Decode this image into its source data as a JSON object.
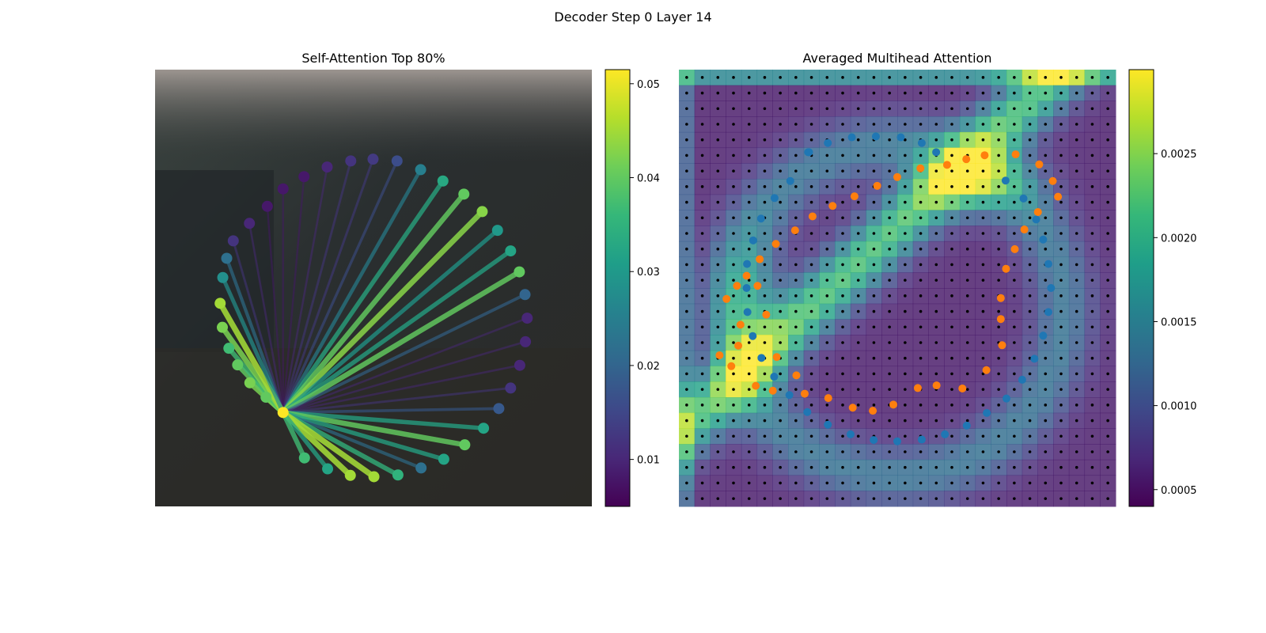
{
  "figure": {
    "suptitle": "Decoder Step 0 Layer 14"
  },
  "colors": {
    "viridis": [
      "#440154",
      "#482878",
      "#3e4989",
      "#31688e",
      "#26828e",
      "#1f9e89",
      "#35b779",
      "#6ece58",
      "#b5de2b",
      "#fde725"
    ],
    "series_blue": "#1f77b4",
    "series_orange": "#ff7f0e",
    "grid_dot": "#000000"
  },
  "chart_data": [
    {
      "type": "scatter",
      "panel": "left",
      "title": "Self-Attention Top 80%",
      "description_of_marks": "keypoints on image connected to a source point by lines colored by attention weight",
      "colorbar": {
        "min": 0.005,
        "max": 0.0515,
        "ticks": [
          0.01,
          0.02,
          0.03,
          0.04,
          0.05
        ],
        "tick_labels": [
          "0.01",
          "0.02",
          "0.03",
          "0.04",
          "0.05"
        ]
      },
      "source_point": {
        "x": 0.293,
        "y": 0.785,
        "weight": 0.0515
      },
      "points": [
        {
          "x": 0.164,
          "y": 0.432,
          "w": 0.022
        },
        {
          "x": 0.179,
          "y": 0.392,
          "w": 0.012
        },
        {
          "x": 0.216,
          "y": 0.352,
          "w": 0.01
        },
        {
          "x": 0.257,
          "y": 0.313,
          "w": 0.008
        },
        {
          "x": 0.293,
          "y": 0.273,
          "w": 0.008
        },
        {
          "x": 0.341,
          "y": 0.245,
          "w": 0.008
        },
        {
          "x": 0.394,
          "y": 0.223,
          "w": 0.01
        },
        {
          "x": 0.448,
          "y": 0.209,
          "w": 0.012
        },
        {
          "x": 0.499,
          "y": 0.205,
          "w": 0.013
        },
        {
          "x": 0.554,
          "y": 0.209,
          "w": 0.016
        },
        {
          "x": 0.608,
          "y": 0.229,
          "w": 0.025
        },
        {
          "x": 0.659,
          "y": 0.255,
          "w": 0.033
        },
        {
          "x": 0.707,
          "y": 0.285,
          "w": 0.04
        },
        {
          "x": 0.749,
          "y": 0.325,
          "w": 0.043
        },
        {
          "x": 0.784,
          "y": 0.368,
          "w": 0.03
        },
        {
          "x": 0.814,
          "y": 0.415,
          "w": 0.032
        },
        {
          "x": 0.834,
          "y": 0.463,
          "w": 0.04
        },
        {
          "x": 0.847,
          "y": 0.515,
          "w": 0.02
        },
        {
          "x": 0.852,
          "y": 0.569,
          "w": 0.01
        },
        {
          "x": 0.848,
          "y": 0.623,
          "w": 0.01
        },
        {
          "x": 0.835,
          "y": 0.677,
          "w": 0.01
        },
        {
          "x": 0.814,
          "y": 0.729,
          "w": 0.012
        },
        {
          "x": 0.787,
          "y": 0.776,
          "w": 0.018
        },
        {
          "x": 0.752,
          "y": 0.821,
          "w": 0.032
        },
        {
          "x": 0.709,
          "y": 0.859,
          "w": 0.04
        },
        {
          "x": 0.661,
          "y": 0.892,
          "w": 0.032
        },
        {
          "x": 0.609,
          "y": 0.912,
          "w": 0.022
        },
        {
          "x": 0.556,
          "y": 0.928,
          "w": 0.035
        },
        {
          "x": 0.501,
          "y": 0.932,
          "w": 0.045
        },
        {
          "x": 0.447,
          "y": 0.929,
          "w": 0.045
        },
        {
          "x": 0.395,
          "y": 0.914,
          "w": 0.032
        },
        {
          "x": 0.342,
          "y": 0.889,
          "w": 0.037
        },
        {
          "x": 0.254,
          "y": 0.75,
          "w": 0.04
        },
        {
          "x": 0.217,
          "y": 0.717,
          "w": 0.042
        },
        {
          "x": 0.189,
          "y": 0.676,
          "w": 0.04
        },
        {
          "x": 0.169,
          "y": 0.638,
          "w": 0.037
        },
        {
          "x": 0.154,
          "y": 0.59,
          "w": 0.042
        },
        {
          "x": 0.149,
          "y": 0.535,
          "w": 0.045
        },
        {
          "x": 0.155,
          "y": 0.476,
          "w": 0.028
        }
      ]
    },
    {
      "type": "heatmap",
      "panel": "right",
      "title": "Averaged Multihead Attention",
      "colorbar": {
        "min": 0.0004,
        "max": 0.003,
        "ticks": [
          0.0005,
          0.001,
          0.0015,
          0.002,
          0.0025
        ],
        "tick_labels": [
          "0.0005",
          "0.0010",
          "0.0015",
          "0.0020",
          "0.0025"
        ]
      },
      "grid_size": 28,
      "series": [
        {
          "color": "#1f77b4",
          "points": [
            {
              "x": 0.298,
              "y": 0.189
            },
            {
              "x": 0.341,
              "y": 0.168
            },
            {
              "x": 0.396,
              "y": 0.155
            },
            {
              "x": 0.451,
              "y": 0.153
            },
            {
              "x": 0.508,
              "y": 0.155
            },
            {
              "x": 0.556,
              "y": 0.168
            },
            {
              "x": 0.296,
              "y": 0.189
            },
            {
              "x": 0.589,
              "y": 0.189
            },
            {
              "x": 0.748,
              "y": 0.254
            },
            {
              "x": 0.789,
              "y": 0.295
            },
            {
              "x": 0.818,
              "y": 0.343
            },
            {
              "x": 0.834,
              "y": 0.389
            },
            {
              "x": 0.846,
              "y": 0.445
            },
            {
              "x": 0.852,
              "y": 0.5
            },
            {
              "x": 0.846,
              "y": 0.555
            },
            {
              "x": 0.834,
              "y": 0.609
            },
            {
              "x": 0.814,
              "y": 0.662
            },
            {
              "x": 0.786,
              "y": 0.71
            },
            {
              "x": 0.75,
              "y": 0.753
            },
            {
              "x": 0.705,
              "y": 0.786
            },
            {
              "x": 0.659,
              "y": 0.815
            },
            {
              "x": 0.609,
              "y": 0.835
            },
            {
              "x": 0.556,
              "y": 0.847
            },
            {
              "x": 0.5,
              "y": 0.851
            },
            {
              "x": 0.446,
              "y": 0.848
            },
            {
              "x": 0.393,
              "y": 0.835
            },
            {
              "x": 0.341,
              "y": 0.813
            },
            {
              "x": 0.294,
              "y": 0.784
            },
            {
              "x": 0.253,
              "y": 0.745
            },
            {
              "x": 0.218,
              "y": 0.703
            },
            {
              "x": 0.189,
              "y": 0.66
            },
            {
              "x": 0.169,
              "y": 0.61
            },
            {
              "x": 0.157,
              "y": 0.555
            },
            {
              "x": 0.155,
              "y": 0.5
            },
            {
              "x": 0.156,
              "y": 0.445
            },
            {
              "x": 0.17,
              "y": 0.391
            },
            {
              "x": 0.188,
              "y": 0.341
            },
            {
              "x": 0.219,
              "y": 0.294
            },
            {
              "x": 0.255,
              "y": 0.255
            }
          ]
        },
        {
          "color": "#ff7f0e",
          "points": [
            {
              "x": 0.109,
              "y": 0.525
            },
            {
              "x": 0.133,
              "y": 0.495
            },
            {
              "x": 0.155,
              "y": 0.472
            },
            {
              "x": 0.185,
              "y": 0.434
            },
            {
              "x": 0.222,
              "y": 0.399
            },
            {
              "x": 0.266,
              "y": 0.368
            },
            {
              "x": 0.306,
              "y": 0.336
            },
            {
              "x": 0.352,
              "y": 0.312
            },
            {
              "x": 0.402,
              "y": 0.29
            },
            {
              "x": 0.454,
              "y": 0.266
            },
            {
              "x": 0.5,
              "y": 0.246
            },
            {
              "x": 0.553,
              "y": 0.226
            },
            {
              "x": 0.614,
              "y": 0.218
            },
            {
              "x": 0.658,
              "y": 0.205
            },
            {
              "x": 0.7,
              "y": 0.196
            },
            {
              "x": 0.771,
              "y": 0.194
            },
            {
              "x": 0.825,
              "y": 0.217
            },
            {
              "x": 0.856,
              "y": 0.255
            },
            {
              "x": 0.868,
              "y": 0.291
            },
            {
              "x": 0.822,
              "y": 0.326
            },
            {
              "x": 0.791,
              "y": 0.366
            },
            {
              "x": 0.769,
              "y": 0.411
            },
            {
              "x": 0.749,
              "y": 0.456
            },
            {
              "x": 0.737,
              "y": 0.523
            },
            {
              "x": 0.737,
              "y": 0.571
            },
            {
              "x": 0.74,
              "y": 0.631
            },
            {
              "x": 0.704,
              "y": 0.688
            },
            {
              "x": 0.649,
              "y": 0.73
            },
            {
              "x": 0.59,
              "y": 0.723
            },
            {
              "x": 0.547,
              "y": 0.729
            },
            {
              "x": 0.491,
              "y": 0.767
            },
            {
              "x": 0.444,
              "y": 0.781
            },
            {
              "x": 0.398,
              "y": 0.774
            },
            {
              "x": 0.342,
              "y": 0.752
            },
            {
              "x": 0.288,
              "y": 0.742
            },
            {
              "x": 0.269,
              "y": 0.7
            },
            {
              "x": 0.224,
              "y": 0.658
            },
            {
              "x": 0.2,
              "y": 0.561
            },
            {
              "x": 0.18,
              "y": 0.495
            },
            {
              "x": 0.141,
              "y": 0.584
            },
            {
              "x": 0.136,
              "y": 0.632
            },
            {
              "x": 0.093,
              "y": 0.654
            },
            {
              "x": 0.12,
              "y": 0.679
            },
            {
              "x": 0.176,
              "y": 0.724
            },
            {
              "x": 0.215,
              "y": 0.735
            }
          ]
        }
      ]
    }
  ]
}
